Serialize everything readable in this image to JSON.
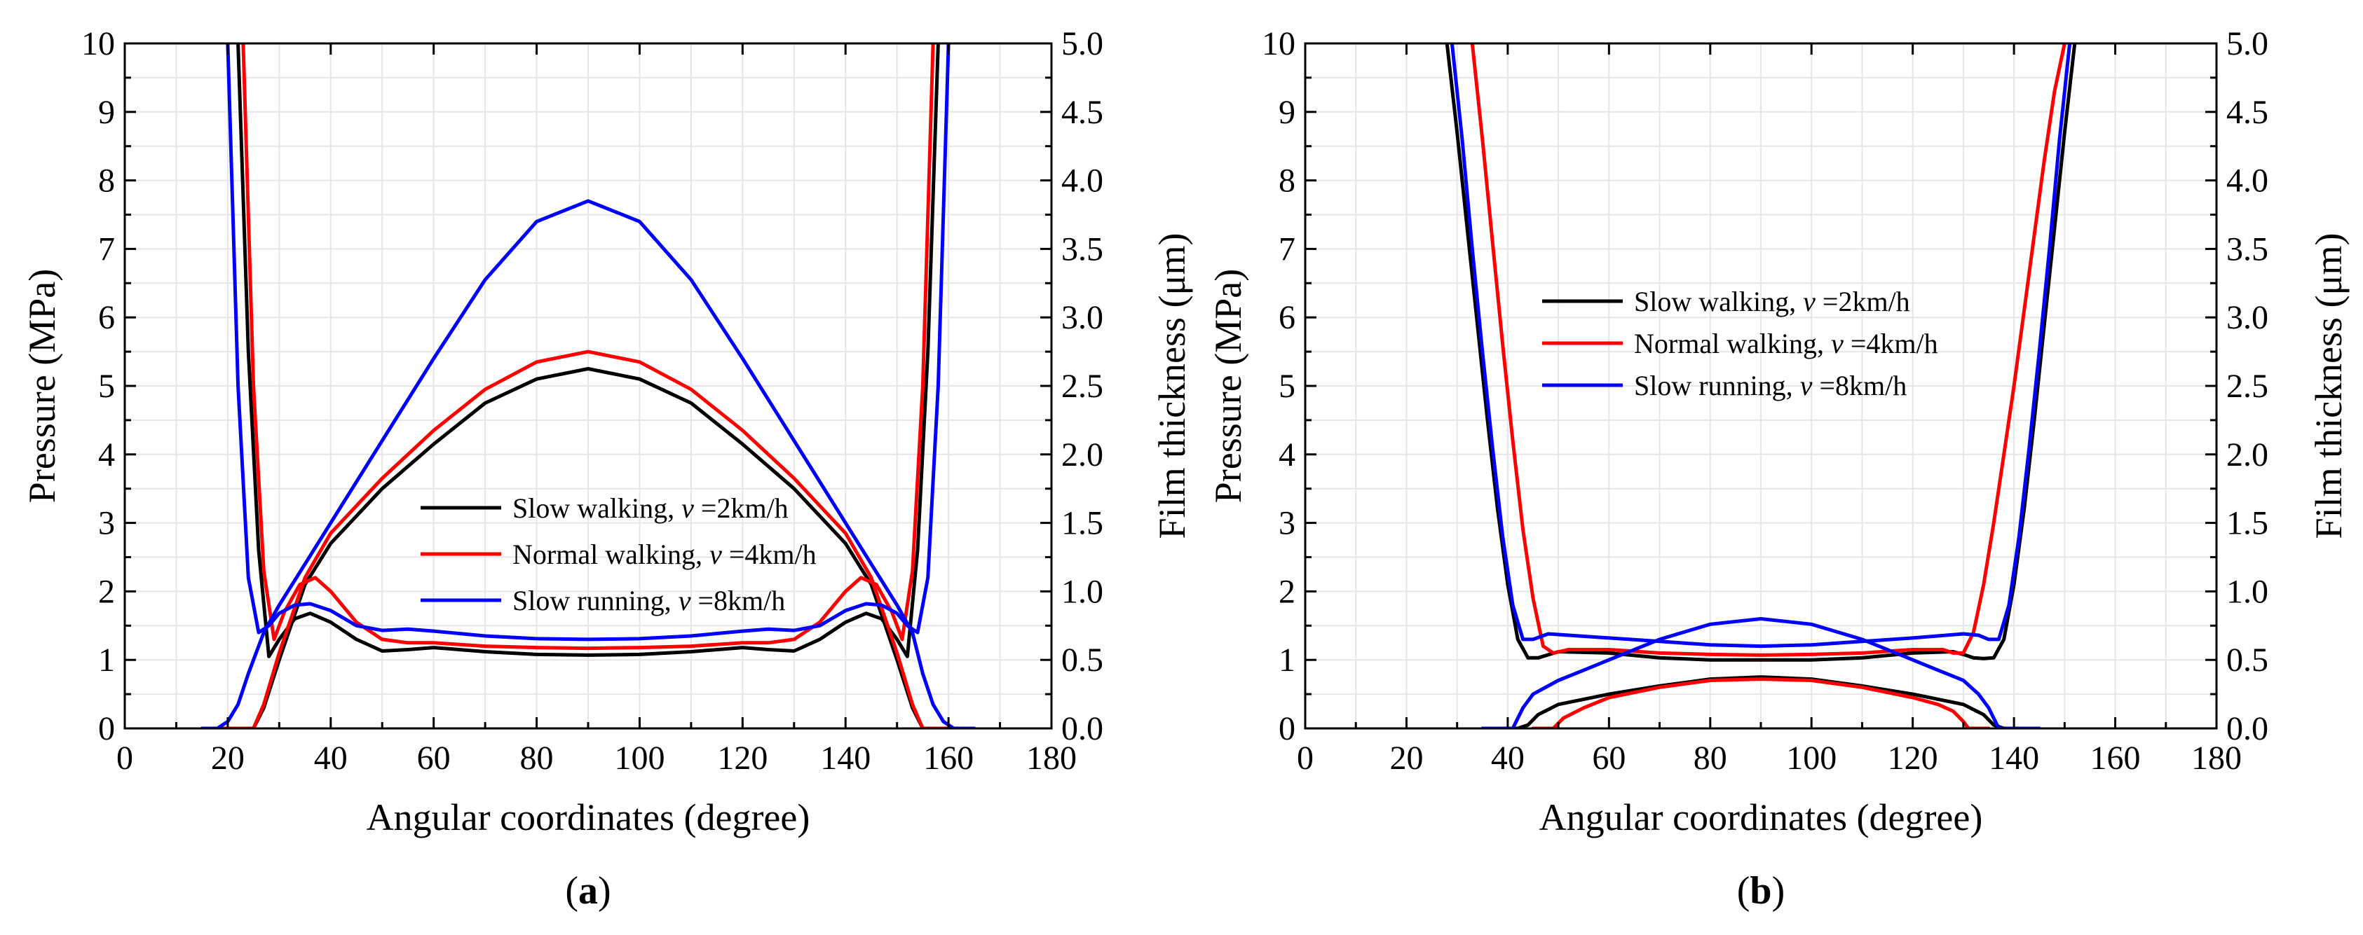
{
  "figure": {
    "panels": [
      {
        "label": "(a)",
        "letter": "a"
      },
      {
        "label": "(b)",
        "letter": "b"
      }
    ]
  },
  "chart_data": [
    {
      "type": "line",
      "panel": "a",
      "xlabel": "Angular coordinates (degree)",
      "ylabel_left": "Pressure (MPa)",
      "ylabel_right": "Film thickness (μm)",
      "xlim": [
        0,
        180
      ],
      "ylim_left": [
        0,
        10
      ],
      "ylim_right": [
        0,
        5
      ],
      "xticks": [
        0,
        20,
        40,
        60,
        80,
        100,
        120,
        140,
        160,
        180
      ],
      "yticks_left": [
        0,
        1,
        2,
        3,
        4,
        5,
        6,
        7,
        8,
        9,
        10
      ],
      "yticks_right": [
        "0.0",
        "0.5",
        "1.0",
        "1.5",
        "2.0",
        "2.5",
        "3.0",
        "3.5",
        "4.0",
        "4.5",
        "5.0"
      ],
      "grid": true,
      "legend": [
        {
          "prefix": "Slow walking, ",
          "var": "v",
          "suffix": " =2km/h",
          "color": "#000000"
        },
        {
          "prefix": "Normal walking, ",
          "var": "v",
          "suffix": " =4km/h",
          "color": "#ff0000"
        },
        {
          "prefix": "Slow running, ",
          "var": "v",
          "suffix": " =8km/h",
          "color": "#0000ff"
        }
      ],
      "series": [
        {
          "name": "Slow walking pressure",
          "color": "#000000",
          "axis": "left",
          "x": [
            15,
            25,
            27,
            30,
            35,
            40,
            50,
            60,
            70,
            80,
            90,
            100,
            110,
            120,
            130,
            140,
            145,
            150,
            153,
            155,
            165
          ],
          "y": [
            0,
            0,
            0.3,
            1.0,
            2.1,
            2.7,
            3.5,
            4.15,
            4.75,
            5.1,
            5.25,
            5.1,
            4.75,
            4.15,
            3.5,
            2.7,
            2.1,
            1.0,
            0.3,
            0,
            0
          ]
        },
        {
          "name": "Slow walking film",
          "color": "#000000",
          "axis": "left",
          "x": [
            22,
            24,
            26,
            28,
            30,
            33,
            36,
            40,
            45,
            50,
            55,
            60,
            70,
            80,
            90,
            100,
            110,
            120,
            125,
            130,
            135,
            140,
            144,
            147,
            150,
            152,
            154,
            156,
            158
          ],
          "y": [
            10,
            5.5,
            2.6,
            1.05,
            1.3,
            1.6,
            1.68,
            1.55,
            1.3,
            1.13,
            1.15,
            1.18,
            1.12,
            1.08,
            1.07,
            1.08,
            1.12,
            1.18,
            1.15,
            1.13,
            1.3,
            1.55,
            1.68,
            1.6,
            1.3,
            1.05,
            2.6,
            5.5,
            10
          ]
        },
        {
          "name": "Normal walking pressure",
          "color": "#ff0000",
          "axis": "left",
          "x": [
            15,
            25,
            27,
            30,
            35,
            40,
            50,
            60,
            70,
            80,
            90,
            100,
            110,
            120,
            130,
            140,
            145,
            150,
            153,
            155,
            165
          ],
          "y": [
            0,
            0,
            0.35,
            1.1,
            2.2,
            2.85,
            3.65,
            4.35,
            4.95,
            5.35,
            5.5,
            5.35,
            4.95,
            4.35,
            3.65,
            2.85,
            2.2,
            1.1,
            0.35,
            0,
            0
          ]
        },
        {
          "name": "Normal walking film",
          "color": "#ff0000",
          "axis": "left",
          "x": [
            23,
            25,
            27,
            29,
            31,
            34,
            37,
            40,
            45,
            50,
            55,
            60,
            70,
            80,
            90,
            100,
            110,
            120,
            125,
            130,
            135,
            140,
            143,
            146,
            149,
            151,
            153,
            155,
            157
          ],
          "y": [
            10,
            5.0,
            2.3,
            1.3,
            1.7,
            2.1,
            2.2,
            2.0,
            1.55,
            1.3,
            1.25,
            1.25,
            1.2,
            1.18,
            1.17,
            1.18,
            1.2,
            1.25,
            1.25,
            1.3,
            1.55,
            2.0,
            2.2,
            2.1,
            1.7,
            1.3,
            2.3,
            5.0,
            10
          ]
        },
        {
          "name": "Slow running pressure",
          "color": "#0000ff",
          "axis": "left",
          "x": [
            15,
            18,
            20,
            22,
            24,
            27,
            30,
            35,
            40,
            50,
            60,
            70,
            80,
            90,
            100,
            110,
            120,
            130,
            140,
            145,
            150,
            153,
            155,
            157,
            159,
            161,
            165
          ],
          "y": [
            0,
            0,
            0.1,
            0.35,
            0.8,
            1.4,
            1.8,
            2.4,
            3.0,
            4.2,
            5.4,
            6.55,
            7.4,
            7.7,
            7.4,
            6.55,
            5.4,
            4.2,
            3.0,
            2.4,
            1.8,
            1.4,
            0.8,
            0.35,
            0.1,
            0,
            0
          ]
        },
        {
          "name": "Slow running film",
          "color": "#0000ff",
          "axis": "left",
          "x": [
            20,
            22,
            24,
            26,
            28,
            30,
            33,
            36,
            40,
            45,
            50,
            55,
            60,
            70,
            80,
            90,
            100,
            110,
            120,
            125,
            130,
            135,
            140,
            144,
            147,
            150,
            152,
            154,
            156,
            158,
            160
          ],
          "y": [
            10,
            5.0,
            2.2,
            1.4,
            1.5,
            1.68,
            1.8,
            1.82,
            1.72,
            1.5,
            1.43,
            1.45,
            1.42,
            1.35,
            1.31,
            1.3,
            1.31,
            1.35,
            1.42,
            1.45,
            1.43,
            1.5,
            1.72,
            1.82,
            1.8,
            1.68,
            1.5,
            1.4,
            2.2,
            5.0,
            10
          ]
        }
      ]
    },
    {
      "type": "line",
      "panel": "b",
      "xlabel": "Angular coordinates (degree)",
      "ylabel_left": "Pressure (MPa)",
      "ylabel_right": "Film thickness (μm)",
      "xlim": [
        0,
        180
      ],
      "ylim_left": [
        0,
        10
      ],
      "ylim_right": [
        0,
        5
      ],
      "xticks": [
        0,
        20,
        40,
        60,
        80,
        100,
        120,
        140,
        160,
        180
      ],
      "yticks_left": [
        0,
        1,
        2,
        3,
        4,
        5,
        6,
        7,
        8,
        9,
        10
      ],
      "yticks_right": [
        "0.0",
        "0.5",
        "1.0",
        "1.5",
        "2.0",
        "2.5",
        "3.0",
        "3.5",
        "4.0",
        "4.5",
        "5.0"
      ],
      "grid": true,
      "legend": [
        {
          "prefix": "Slow walking, ",
          "var": "v",
          "suffix": " =2km/h",
          "color": "#000000"
        },
        {
          "prefix": "Normal walking, ",
          "var": "v",
          "suffix": " =4km/h",
          "color": "#ff0000"
        },
        {
          "prefix": "Slow running, ",
          "var": "v",
          "suffix": " =8km/h",
          "color": "#0000ff"
        }
      ],
      "series": [
        {
          "name": "Slow walking pressure",
          "color": "#000000",
          "axis": "left",
          "x": [
            35,
            42,
            44,
            46,
            50,
            60,
            70,
            80,
            90,
            100,
            110,
            120,
            130,
            134,
            136,
            138,
            145
          ],
          "y": [
            0,
            0,
            0.05,
            0.2,
            0.35,
            0.5,
            0.62,
            0.72,
            0.75,
            0.72,
            0.62,
            0.5,
            0.35,
            0.2,
            0.05,
            0,
            0
          ]
        },
        {
          "name": "Slow walking film",
          "color": "#000000",
          "axis": "left",
          "x": [
            28,
            30,
            32,
            34,
            36,
            38,
            40,
            42,
            44,
            46,
            50,
            60,
            70,
            80,
            90,
            100,
            110,
            120,
            128,
            130,
            132,
            134,
            136,
            138,
            140,
            142,
            144,
            146,
            148,
            150,
            152
          ],
          "y": [
            10,
            8.7,
            7.3,
            5.9,
            4.5,
            3.2,
            2.1,
            1.3,
            1.03,
            1.03,
            1.12,
            1.1,
            1.03,
            1.0,
            1.0,
            1.0,
            1.03,
            1.1,
            1.12,
            1.08,
            1.03,
            1.02,
            1.03,
            1.3,
            2.1,
            3.2,
            4.5,
            5.9,
            7.3,
            8.7,
            10
          ]
        },
        {
          "name": "Normal walking pressure",
          "color": "#ff0000",
          "axis": "left",
          "x": [
            45,
            49,
            51,
            55,
            60,
            70,
            80,
            90,
            100,
            110,
            120,
            125,
            128,
            130,
            131,
            135
          ],
          "y": [
            0,
            0,
            0.15,
            0.3,
            0.45,
            0.6,
            0.7,
            0.72,
            0.7,
            0.6,
            0.45,
            0.35,
            0.25,
            0.1,
            0,
            0
          ]
        },
        {
          "name": "Normal walking film",
          "color": "#ff0000",
          "axis": "left",
          "x": [
            33,
            35,
            37,
            39,
            41,
            43,
            45,
            47,
            49,
            52,
            60,
            70,
            80,
            90,
            100,
            110,
            120,
            126,
            128,
            130,
            132,
            134,
            136,
            138,
            140,
            142,
            144,
            146,
            148,
            150
          ],
          "y": [
            10,
            8.6,
            7.1,
            5.6,
            4.2,
            2.9,
            1.9,
            1.2,
            1.1,
            1.15,
            1.15,
            1.1,
            1.08,
            1.07,
            1.08,
            1.1,
            1.15,
            1.15,
            1.1,
            1.1,
            1.4,
            2.1,
            3.0,
            4.0,
            5.0,
            6.1,
            7.2,
            8.3,
            9.3,
            10
          ]
        },
        {
          "name": "Slow running pressure",
          "color": "#0000ff",
          "axis": "left",
          "x": [
            35,
            41,
            43,
            45,
            50,
            55,
            60,
            70,
            80,
            90,
            100,
            110,
            120,
            125,
            130,
            133,
            135,
            137,
            145
          ],
          "y": [
            0,
            0,
            0.3,
            0.5,
            0.7,
            0.85,
            1.0,
            1.3,
            1.52,
            1.6,
            1.52,
            1.3,
            1.0,
            0.85,
            0.7,
            0.5,
            0.3,
            0,
            0
          ]
        },
        {
          "name": "Slow running film",
          "color": "#0000ff",
          "axis": "left",
          "x": [
            29,
            31,
            33,
            35,
            37,
            39,
            41,
            43,
            45,
            48,
            60,
            70,
            80,
            90,
            100,
            110,
            120,
            130,
            133,
            135,
            137,
            139,
            141,
            143,
            145,
            147,
            149,
            151
          ],
          "y": [
            10,
            8.6,
            7.0,
            5.5,
            4.1,
            2.8,
            1.8,
            1.3,
            1.3,
            1.38,
            1.32,
            1.27,
            1.22,
            1.2,
            1.22,
            1.27,
            1.32,
            1.38,
            1.36,
            1.3,
            1.3,
            1.8,
            2.8,
            4.1,
            5.5,
            7.0,
            8.6,
            10
          ]
        }
      ]
    }
  ]
}
